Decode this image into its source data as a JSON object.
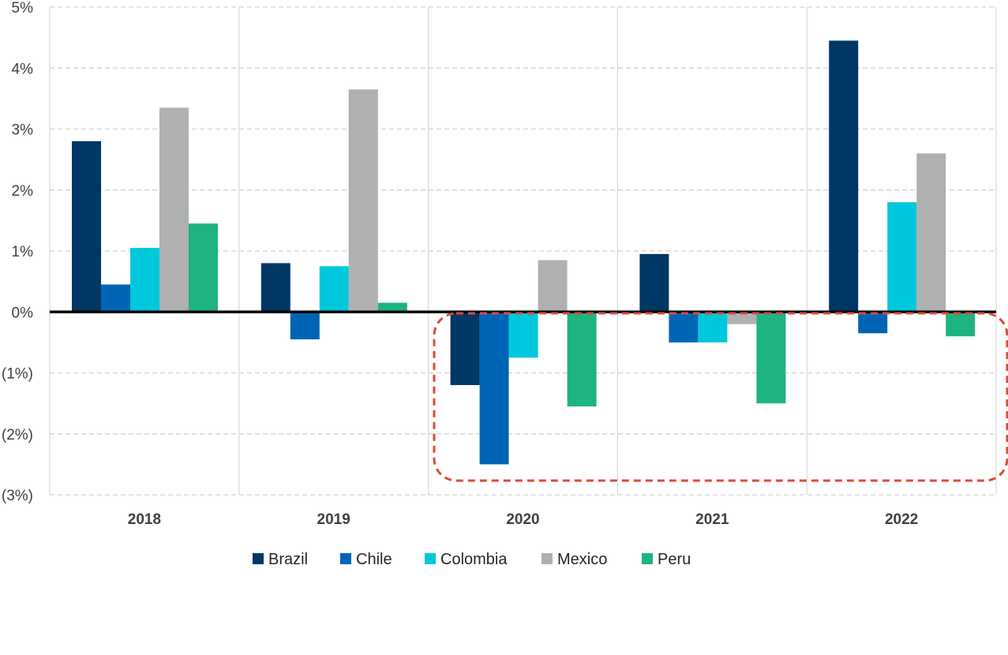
{
  "chart_data": {
    "type": "bar",
    "categories": [
      "2018",
      "2019",
      "2020",
      "2021",
      "2022"
    ],
    "series": [
      {
        "name": "Brazil",
        "color": "#003764",
        "values": [
          2.8,
          0.8,
          -1.2,
          0.95,
          4.45
        ]
      },
      {
        "name": "Chile",
        "color": "#0064B4",
        "values": [
          0.45,
          -0.45,
          -2.5,
          -0.5,
          -0.35
        ]
      },
      {
        "name": "Colombia",
        "color": "#00C8DC",
        "values": [
          1.05,
          0.75,
          -0.75,
          -0.5,
          1.8
        ]
      },
      {
        "name": "Mexico",
        "color": "#AEB0B2",
        "values": [
          3.35,
          3.65,
          0.85,
          -0.2,
          2.6
        ]
      },
      {
        "name": "Peru",
        "color": "#1EB482",
        "values": [
          1.45,
          0.15,
          -1.55,
          -1.5,
          -0.4
        ]
      }
    ],
    "ylim": [
      -3,
      5
    ],
    "y_ticks": [
      {
        "value": 5,
        "label": "5%"
      },
      {
        "value": 4,
        "label": "4%"
      },
      {
        "value": 3,
        "label": "3%"
      },
      {
        "value": 2,
        "label": "2%"
      },
      {
        "value": 1,
        "label": "1%"
      },
      {
        "value": 0,
        "label": "0%"
      },
      {
        "value": -1,
        "label": "(1%)"
      },
      {
        "value": -2,
        "label": "(2%)"
      },
      {
        "value": -3,
        "label": "(3%)"
      }
    ],
    "grid": true,
    "legend_position": "bottom",
    "highlight": {
      "categories": [
        "2020",
        "2021",
        "2022"
      ],
      "region": "negative values",
      "style": "dashed red rounded box",
      "color": "#E0483A"
    }
  }
}
